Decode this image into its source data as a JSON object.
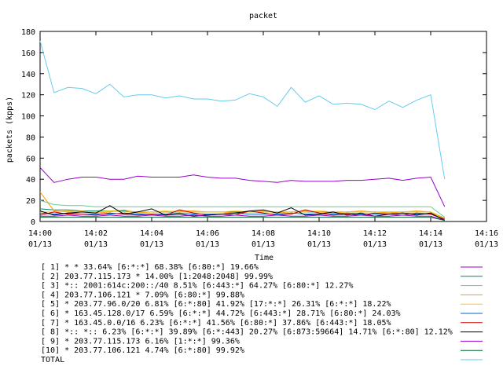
{
  "chart_data": {
    "type": "line",
    "title": "packet",
    "xlabel": "Time",
    "ylabel": "packets (kpps)",
    "ylim": [
      0,
      180
    ],
    "yticks": [
      0,
      20,
      40,
      60,
      80,
      100,
      120,
      140,
      160,
      180
    ],
    "xlim": [
      0,
      16
    ],
    "xticks": [
      {
        "minute": 0,
        "time": "14:00",
        "date": "01/13"
      },
      {
        "minute": 2,
        "time": "14:02",
        "date": "01/13"
      },
      {
        "minute": 4,
        "time": "14:04",
        "date": "01/13"
      },
      {
        "minute": 6,
        "time": "14:06",
        "date": "01/13"
      },
      {
        "minute": 8,
        "time": "14:08",
        "date": "01/13"
      },
      {
        "minute": 10,
        "time": "14:10",
        "date": "01/13"
      },
      {
        "minute": 12,
        "time": "14:12",
        "date": "01/13"
      },
      {
        "minute": 14,
        "time": "14:14",
        "date": "01/13"
      },
      {
        "minute": 16,
        "time": "14:16",
        "date": "01/13"
      }
    ],
    "x": [
      0,
      0.5,
      1,
      1.5,
      2,
      2.5,
      3,
      3.5,
      4,
      4.5,
      5,
      5.5,
      6,
      6.5,
      7,
      7.5,
      8,
      8.5,
      9,
      9.5,
      10,
      10.5,
      11,
      11.5,
      12,
      12.5,
      13,
      13.5,
      14,
      14.5
    ],
    "series": [
      {
        "name": "[ 1] * * 33.64%  [6:*:*] 68.38% [6:80:*] 19.66%",
        "color": "#9900cc",
        "values": [
          51,
          37,
          40,
          42,
          42,
          40,
          40,
          43,
          42,
          42,
          42,
          44,
          42,
          41,
          41,
          39,
          38,
          37,
          39,
          38,
          38,
          38,
          39,
          39,
          40,
          41,
          39,
          41,
          42,
          14
        ]
      },
      {
        "name": "[ 2] 203.77.115.173 * 14.00%  [1:2048:2048] 99.99%",
        "color": "#008866",
        "values": [
          12,
          11,
          11,
          10,
          10,
          10,
          10,
          9,
          9,
          9,
          9,
          9,
          9,
          9,
          9,
          9,
          9,
          9,
          9,
          9,
          9,
          9,
          9,
          9,
          9,
          9,
          9,
          9,
          9,
          3
        ]
      },
      {
        "name": "[ 3] *:: 2001:614c:200::/40 8.51%  [6:443:*] 64.27% [6:80:*] 12.27%",
        "color": "#66cc99",
        "values": [
          20,
          16,
          15,
          15,
          14,
          14,
          14,
          14,
          14,
          14,
          14,
          14,
          14,
          14,
          14,
          14,
          14,
          14,
          14,
          14,
          14,
          14,
          14,
          14,
          14,
          14,
          14,
          14,
          14,
          4
        ]
      },
      {
        "name": "[ 4] 203.77.106.121 * 7.09%  [6:80:*] 99.88%",
        "color": "#ff9900",
        "values": [
          28,
          10,
          9,
          10,
          8,
          9,
          11,
          8,
          9,
          9,
          10,
          10,
          9,
          9,
          8,
          9,
          10,
          8,
          9,
          10,
          9,
          8,
          9,
          10,
          9,
          8,
          9,
          10,
          9,
          3
        ]
      },
      {
        "name": "[ 5] * 203.77.96.0/20 6.81%  [6:*:80] 41.92% [17:*:*] 26.31% [6:*:*] 18.22%",
        "color": "#ffcc00",
        "values": [
          9,
          9,
          10,
          9,
          9,
          10,
          9,
          9,
          9,
          10,
          9,
          9,
          9,
          9,
          10,
          9,
          9,
          9,
          9,
          9,
          10,
          9,
          9,
          9,
          9,
          9,
          9,
          9,
          9,
          2
        ]
      },
      {
        "name": "[ 6] * 163.45.128.0/17 6.59%  [6:*:*] 44.72% [6:443:*] 28.71% [6:80:*] 24.03%",
        "color": "#0066cc",
        "values": [
          8,
          7,
          8,
          7,
          7,
          7,
          8,
          7,
          7,
          7,
          8,
          7,
          7,
          7,
          8,
          7,
          7,
          7,
          8,
          7,
          7,
          7,
          8,
          7,
          7,
          7,
          8,
          7,
          7,
          2
        ]
      },
      {
        "name": "[ 7] * 163.45.0.0/16 6.23%  [6:*:*] 41.56% [6:80:*] 37.86% [6:443:*] 18.05%",
        "color": "#cc0000",
        "values": [
          6,
          9,
          7,
          7,
          6,
          8,
          7,
          6,
          7,
          6,
          11,
          8,
          6,
          7,
          6,
          10,
          8,
          6,
          7,
          11,
          8,
          6,
          7,
          6,
          8,
          7,
          6,
          8,
          7,
          2
        ]
      },
      {
        "name": "[ 8] *:: *:: 6.23%  [6:*:*] 39.89% [6:*:443] 20.27% [6:873:59664] 14.71% [6:*:80] 12.12%",
        "color": "#000000",
        "values": [
          10,
          6,
          8,
          9,
          8,
          15,
          7,
          9,
          12,
          6,
          7,
          5,
          6,
          7,
          8,
          10,
          11,
          8,
          13,
          6,
          7,
          9,
          6,
          8,
          5,
          7,
          8,
          6,
          8,
          1
        ]
      },
      {
        "name": "[ 9] * 203.77.115.173 6.16%  [1:*:*] 99.36%",
        "color": "#9900cc",
        "values": [
          5,
          5,
          6,
          5,
          5,
          6,
          5,
          5,
          6,
          5,
          5,
          6,
          5,
          5,
          6,
          5,
          5,
          6,
          5,
          5,
          6,
          5,
          5,
          6,
          5,
          5,
          6,
          5,
          5,
          1
        ]
      },
      {
        "name": "[10] * 203.77.106.121 4.74%  [6:*:80] 99.92%",
        "color": "#006633",
        "values": [
          4,
          4,
          4,
          4,
          4,
          4,
          4,
          4,
          4,
          4,
          4,
          4,
          4,
          4,
          4,
          4,
          4,
          4,
          4,
          4,
          4,
          4,
          4,
          4,
          4,
          4,
          4,
          4,
          4,
          1
        ]
      },
      {
        "name": "TOTAL",
        "color": "#66ccee",
        "values": [
          171,
          122,
          127,
          126,
          121,
          130,
          118,
          120,
          120,
          117,
          119,
          116,
          116,
          114,
          115,
          121,
          118,
          109,
          127,
          113,
          119,
          111,
          112,
          111,
          106,
          114,
          108,
          115,
          120,
          40
        ]
      }
    ]
  }
}
